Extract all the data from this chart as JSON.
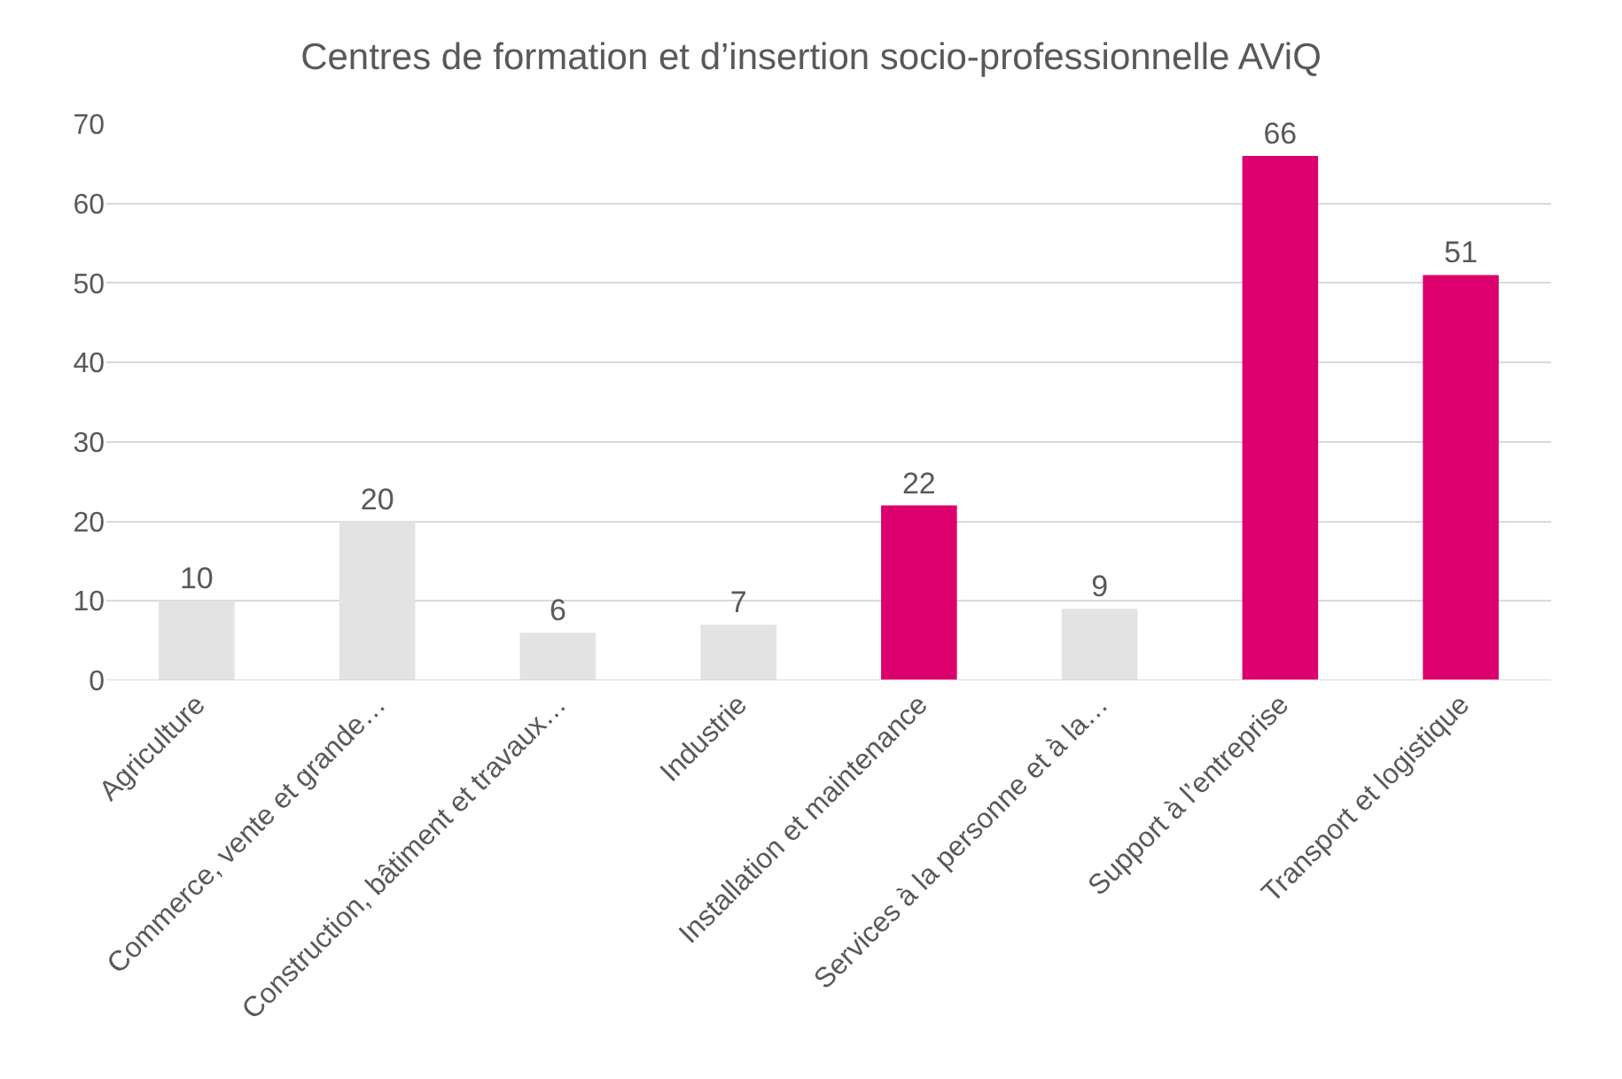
{
  "chart_data": {
    "type": "bar",
    "title": "Centres de formation et d’insertion socio-professionnelle AViQ",
    "categories": [
      "Agriculture",
      "Commerce, vente et grande…",
      "Construction, bâtiment et travaux…",
      "Industrie",
      "Installation et maintenance",
      "Services à la personne et à la…",
      "Support à l’entreprise",
      "Transport et logistique"
    ],
    "values": [
      10,
      20,
      6,
      7,
      22,
      9,
      66,
      51
    ],
    "colors": [
      "#e3e3e3",
      "#e3e3e3",
      "#e3e3e3",
      "#e3e3e3",
      "#dc006e",
      "#e3e3e3",
      "#dc006e",
      "#dc006e"
    ],
    "ylim": [
      0,
      70
    ],
    "yticks": [
      0,
      10,
      20,
      30,
      40,
      50,
      60,
      70
    ],
    "grid": "y",
    "data_labels": true
  }
}
